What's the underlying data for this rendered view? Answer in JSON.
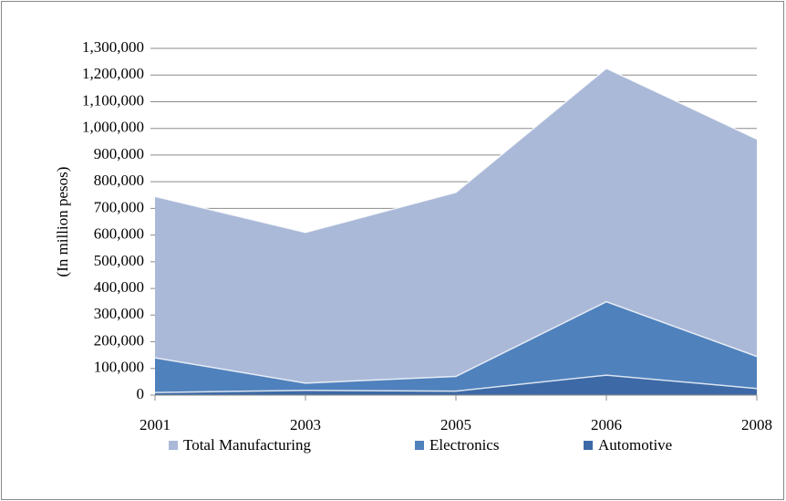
{
  "chart_data": {
    "type": "area",
    "y_axis_label": "(In million pesos)",
    "categories": [
      "2001",
      "2003",
      "2005",
      "2006",
      "2008"
    ],
    "series": [
      {
        "name": "Total Manufacturing",
        "color": "#aab9d8",
        "values": [
          745000,
          610000,
          760000,
          1225000,
          960000
        ]
      },
      {
        "name": "Electronics",
        "color": "#4f81bd",
        "values": [
          140000,
          45000,
          70000,
          350000,
          145000
        ]
      },
      {
        "name": "Automotive",
        "color": "#3d6aa6",
        "values": [
          10000,
          18000,
          15000,
          75000,
          25000
        ]
      }
    ],
    "ylim": [
      0,
      1300000
    ],
    "yticks": [
      0,
      {
        "value": 100000,
        "label": "100,000"
      },
      {
        "value": 200000,
        "label": "200,000"
      },
      {
        "value": 300000,
        "label": "300,000"
      },
      {
        "value": 400000,
        "label": "400,000"
      },
      {
        "value": 500000,
        "label": "500,000"
      },
      {
        "value": 600000,
        "label": "600,000"
      },
      {
        "value": 700000,
        "label": "700,000"
      },
      {
        "value": 800000,
        "label": "800,000"
      },
      {
        "value": 900000,
        "label": "900,000"
      },
      {
        "value": 1000000,
        "label": "1,000,000"
      },
      {
        "value": 1100000,
        "label": "1,100,000"
      },
      {
        "value": 1200000,
        "label": "1,200,000"
      },
      {
        "value": 1300000,
        "label": "1,300,000"
      }
    ],
    "grid": true,
    "legend": "bottom"
  }
}
